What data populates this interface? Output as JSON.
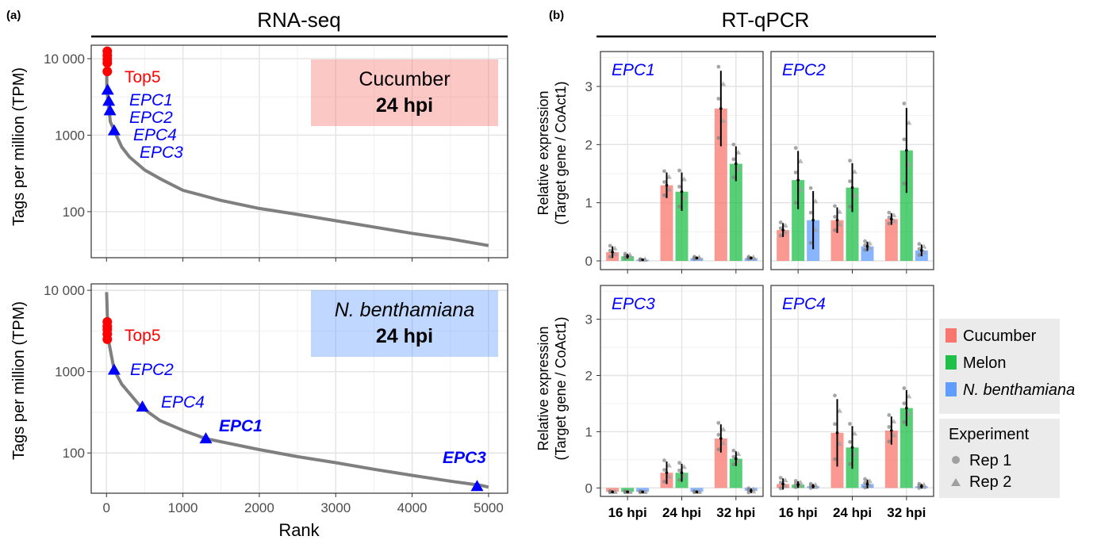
{
  "panel_labels": {
    "a": "(a)",
    "b": "(b)"
  },
  "sections": {
    "rnaseq": "RNA-seq",
    "rtqpcr": "RT-qPCR"
  },
  "rnaseq": {
    "ylabel": "Tags per million (TPM)",
    "xlabel": "Rank",
    "yticks": [
      "10 000",
      "1000",
      "100"
    ],
    "xticks": [
      "0",
      "1000",
      "2000",
      "3000",
      "4000",
      "5000"
    ],
    "top5_label": "Top5",
    "cucumber_box": {
      "title": "Cucumber",
      "subtitle": "24 hpi"
    },
    "benth_box": {
      "title": "N. benthamiana",
      "subtitle": "24 hpi"
    },
    "cucumber_labels": [
      "EPC1",
      "EPC2",
      "EPC4",
      "EPC3"
    ],
    "benth_labels": [
      "EPC2",
      "EPC4",
      "EPC1",
      "EPC3"
    ]
  },
  "rtqpcr": {
    "ylabel_line1": "Relative expression",
    "ylabel_line2": "(Target gene / CoAct1)",
    "yticks": [
      "0",
      "1",
      "2",
      "3"
    ],
    "xticks": [
      "16 hpi",
      "24 hpi",
      "32 hpi"
    ],
    "facets": [
      "EPC1",
      "EPC2",
      "EPC3",
      "EPC4"
    ],
    "legend_host": [
      "Cucumber",
      "Melon",
      "N. benthamiana"
    ],
    "legend_exp_title": "Experiment",
    "legend_exp": [
      "Rep 1",
      "Rep 2"
    ]
  },
  "colors": {
    "cucumber": "#f8766d",
    "melon": "#1fbf4a",
    "benth": "#619cff",
    "gene": "#0000ff",
    "top5": "#ff0000",
    "curve": "#7f7f7f"
  },
  "chart_data": [
    {
      "type": "line",
      "title": "Cucumber 24 hpi",
      "xlabel": "Rank",
      "ylabel": "Tags per million (TPM)",
      "yscale": "log",
      "xlim": [
        -200,
        5250
      ],
      "ylim": [
        25,
        15000
      ],
      "grid": true,
      "curve": {
        "x": [
          1,
          5,
          50,
          100,
          200,
          300,
          500,
          700,
          1000,
          1500,
          2000,
          2500,
          3000,
          3500,
          4000,
          4500,
          5000
        ],
        "y": [
          13000,
          4000,
          1500,
          1150,
          700,
          520,
          350,
          270,
          190,
          140,
          110,
          92,
          76,
          63,
          52,
          44,
          36
        ]
      },
      "top5": {
        "x": [
          1,
          2,
          3,
          4,
          5
        ],
        "y": [
          12500,
          11000,
          9800,
          8800,
          6800
        ]
      },
      "markers": [
        {
          "label": "EPC1",
          "x": 15,
          "y": 3900
        },
        {
          "label": "EPC2",
          "x": 30,
          "y": 2800
        },
        {
          "label": "EPC4",
          "x": 45,
          "y": 2100
        },
        {
          "label": "EPC3",
          "x": 100,
          "y": 1150
        }
      ]
    },
    {
      "type": "line",
      "title": "N. benthamiana 24 hpi",
      "xlabel": "Rank",
      "ylabel": "Tags per million (TPM)",
      "yscale": "log",
      "xlim": [
        -200,
        5250
      ],
      "ylim": [
        32,
        12000
      ],
      "grid": true,
      "curve": {
        "x": [
          1,
          20,
          100,
          200,
          450,
          700,
          1000,
          1300,
          2000,
          2500,
          3000,
          3500,
          4000,
          4500,
          4900,
          5000
        ],
        "y": [
          9500,
          2600,
          1050,
          700,
          370,
          250,
          190,
          150,
          110,
          90,
          76,
          63,
          53,
          45,
          40,
          38
        ]
      },
      "top5": {
        "x": [
          1,
          2,
          3,
          4,
          5
        ],
        "y": [
          4100,
          3600,
          3300,
          2900,
          2500
        ]
      },
      "markers": [
        {
          "label": "EPC2",
          "x": 100,
          "y": 1050,
          "bold": false
        },
        {
          "label": "EPC4",
          "x": 470,
          "y": 370,
          "bold": false
        },
        {
          "label": "EPC1",
          "x": 1300,
          "y": 150,
          "bold": true
        },
        {
          "label": "EPC3",
          "x": 4850,
          "y": 39,
          "bold": true
        }
      ]
    },
    {
      "type": "bar",
      "title": "EPC1",
      "categories": [
        "16 hpi",
        "24 hpi",
        "32 hpi"
      ],
      "ylim": [
        -0.15,
        3.6
      ],
      "series": [
        {
          "name": "Cucumber",
          "values": [
            0.15,
            1.3,
            2.62
          ],
          "err": [
            0.1,
            0.22,
            0.65
          ]
        },
        {
          "name": "Melon",
          "values": [
            0.08,
            1.19,
            1.67
          ],
          "err": [
            0.04,
            0.33,
            0.3
          ]
        },
        {
          "name": "N. benthamiana",
          "values": [
            0.02,
            0.05,
            0.05
          ],
          "err": [
            0.01,
            0.02,
            0.02
          ]
        }
      ]
    },
    {
      "type": "bar",
      "title": "EPC2",
      "categories": [
        "16 hpi",
        "24 hpi",
        "32 hpi"
      ],
      "ylim": [
        -0.15,
        3.6
      ],
      "series": [
        {
          "name": "Cucumber",
          "values": [
            0.53,
            0.7,
            0.72
          ],
          "err": [
            0.12,
            0.22,
            0.1
          ]
        },
        {
          "name": "Melon",
          "values": [
            1.39,
            1.26,
            1.9
          ],
          "err": [
            0.5,
            0.42,
            0.73
          ]
        },
        {
          "name": "N. benthamiana",
          "values": [
            0.7,
            0.25,
            0.18
          ],
          "err": [
            0.5,
            0.08,
            0.1
          ]
        }
      ]
    },
    {
      "type": "bar",
      "title": "EPC3",
      "categories": [
        "16 hpi",
        "24 hpi",
        "32 hpi"
      ],
      "ylim": [
        -0.15,
        3.6
      ],
      "series": [
        {
          "name": "Cucumber",
          "values": [
            -0.07,
            0.27,
            0.88
          ],
          "err": [
            0.01,
            0.2,
            0.25
          ]
        },
        {
          "name": "Melon",
          "values": [
            -0.07,
            0.27,
            0.52
          ],
          "err": [
            0.01,
            0.16,
            0.13
          ]
        },
        {
          "name": "N. benthamiana",
          "values": [
            -0.07,
            -0.07,
            -0.05
          ],
          "err": [
            0.01,
            0.01,
            0.04
          ]
        }
      ]
    },
    {
      "type": "bar",
      "title": "EPC4",
      "categories": [
        "16 hpi",
        "24 hpi",
        "32 hpi"
      ],
      "ylim": [
        -0.15,
        3.6
      ],
      "series": [
        {
          "name": "Cucumber",
          "values": [
            0.07,
            0.98,
            1.02
          ],
          "err": [
            0.1,
            0.6,
            0.25
          ]
        },
        {
          "name": "Melon",
          "values": [
            0.06,
            0.72,
            1.42
          ],
          "err": [
            0.06,
            0.38,
            0.32
          ]
        },
        {
          "name": "N. benthamiana",
          "values": [
            0.03,
            0.07,
            0.03
          ],
          "err": [
            0.04,
            0.08,
            0.04
          ]
        }
      ]
    }
  ]
}
